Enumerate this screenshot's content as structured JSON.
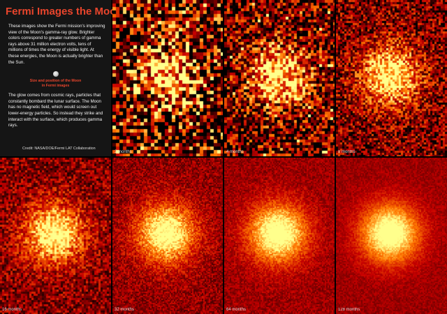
{
  "info": {
    "title": "Fermi Images the Moon",
    "intro": "These images show the Fermi mission's improving view of the Moon's gamma-ray glow. Brighter colors correspond to greater numbers of gamma rays above 31 million electron volts, tens of millions of times the energy of visible light. At these energies, the Moon is actually brighter than the Sun.",
    "moon_caption_line1": "Size and position of the Moon",
    "moon_caption_line2": "in Fermi images",
    "explanation": "The glow comes from cosmic rays, particles that constantly bombard the lunar surface. The Moon has no magnetic field, which would screen out lower-energy particles. So instead they strike and interact with the surface, which produces gamma rays.",
    "credit": "Credit: NASA/DOE/Fermi LAT Collaboration",
    "accent_color": "#e9452c"
  },
  "panels": [
    {
      "label": "2 months",
      "exposure_months": 2
    },
    {
      "label": "4 months",
      "exposure_months": 4
    },
    {
      "label": "8 months",
      "exposure_months": 8
    },
    {
      "label": "16 months",
      "exposure_months": 16
    },
    {
      "label": "32 months",
      "exposure_months": 32
    },
    {
      "label": "64 months",
      "exposure_months": 64
    },
    {
      "label": "128 months",
      "exposure_months": 128
    }
  ]
}
